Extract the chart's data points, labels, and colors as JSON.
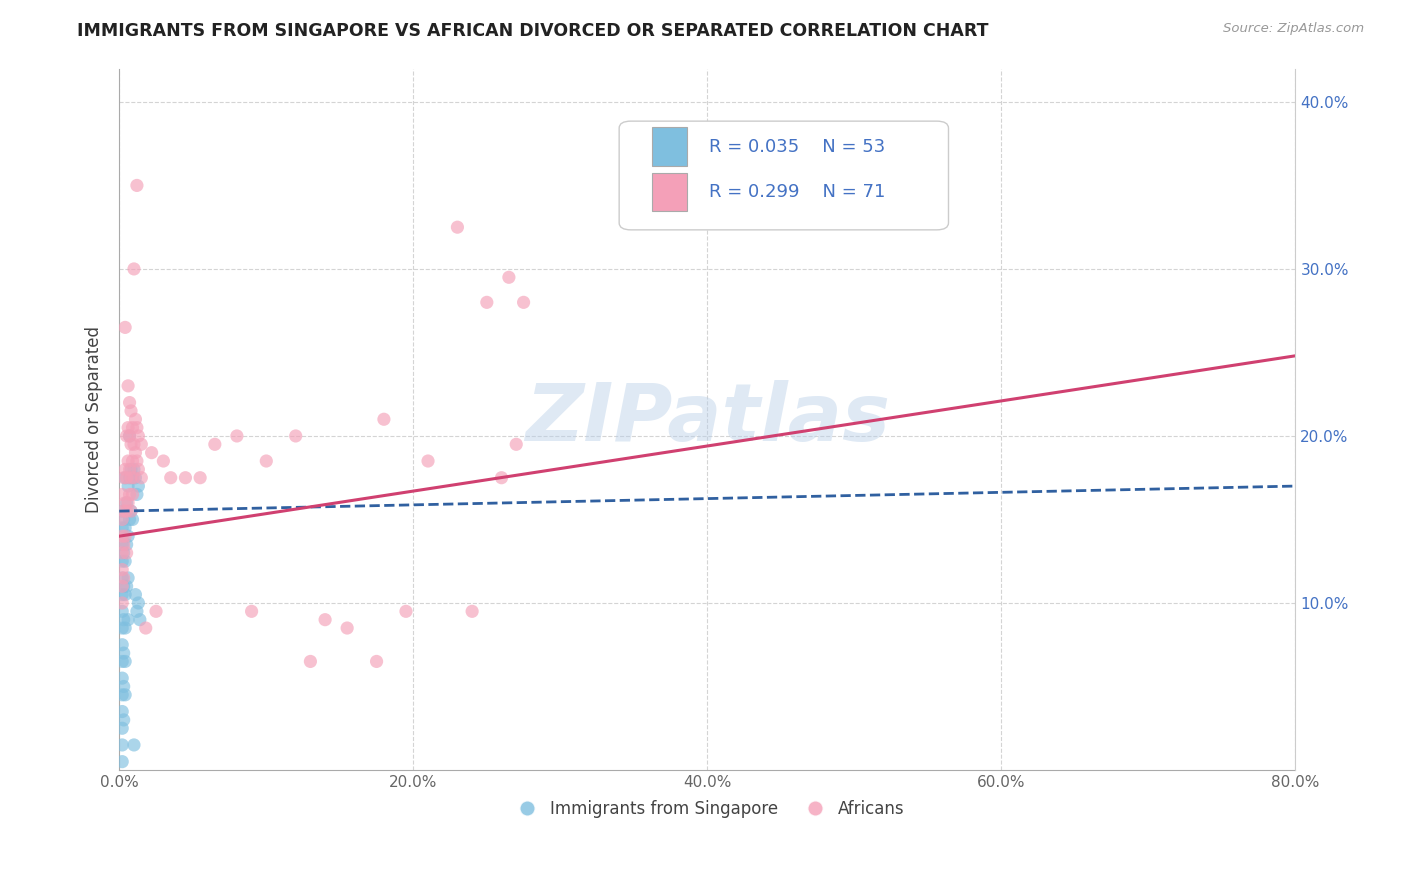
{
  "title": "IMMIGRANTS FROM SINGAPORE VS AFRICAN DIVORCED OR SEPARATED CORRELATION CHART",
  "source_text": "Source: ZipAtlas.com",
  "ylabel": "Divorced or Separated",
  "watermark": "ZIPatlas",
  "xlim": [
    0.0,
    0.8
  ],
  "ylim": [
    0.0,
    0.42
  ],
  "xtick_labels": [
    "0.0%",
    "20.0%",
    "40.0%",
    "60.0%",
    "80.0%"
  ],
  "xtick_vals": [
    0.0,
    0.2,
    0.4,
    0.6,
    0.8
  ],
  "ytick_labels": [
    "10.0%",
    "20.0%",
    "30.0%",
    "40.0%"
  ],
  "ytick_vals": [
    0.1,
    0.2,
    0.3,
    0.4
  ],
  "legend_color": "#4472c4",
  "blue_color": "#7fbfdf",
  "pink_color": "#f4a0b8",
  "blue_line_color": "#3060a0",
  "pink_line_color": "#d04070",
  "blue_line": [
    [
      0.0,
      0.155
    ],
    [
      0.8,
      0.17
    ]
  ],
  "pink_line": [
    [
      0.0,
      0.14
    ],
    [
      0.8,
      0.248
    ]
  ],
  "blue_scatter": [
    [
      0.002,
      0.155
    ],
    [
      0.002,
      0.145
    ],
    [
      0.002,
      0.135
    ],
    [
      0.002,
      0.125
    ],
    [
      0.002,
      0.115
    ],
    [
      0.002,
      0.105
    ],
    [
      0.002,
      0.095
    ],
    [
      0.002,
      0.085
    ],
    [
      0.002,
      0.075
    ],
    [
      0.002,
      0.065
    ],
    [
      0.002,
      0.055
    ],
    [
      0.002,
      0.045
    ],
    [
      0.002,
      0.035
    ],
    [
      0.002,
      0.025
    ],
    [
      0.002,
      0.015
    ],
    [
      0.002,
      0.005
    ],
    [
      0.003,
      0.15
    ],
    [
      0.003,
      0.13
    ],
    [
      0.003,
      0.11
    ],
    [
      0.003,
      0.09
    ],
    [
      0.003,
      0.07
    ],
    [
      0.003,
      0.05
    ],
    [
      0.003,
      0.03
    ],
    [
      0.004,
      0.175
    ],
    [
      0.004,
      0.145
    ],
    [
      0.004,
      0.125
    ],
    [
      0.004,
      0.105
    ],
    [
      0.004,
      0.085
    ],
    [
      0.004,
      0.065
    ],
    [
      0.004,
      0.045
    ],
    [
      0.005,
      0.16
    ],
    [
      0.005,
      0.135
    ],
    [
      0.005,
      0.11
    ],
    [
      0.006,
      0.17
    ],
    [
      0.006,
      0.14
    ],
    [
      0.006,
      0.115
    ],
    [
      0.006,
      0.09
    ],
    [
      0.007,
      0.2
    ],
    [
      0.007,
      0.175
    ],
    [
      0.007,
      0.15
    ],
    [
      0.008,
      0.18
    ],
    [
      0.008,
      0.155
    ],
    [
      0.009,
      0.175
    ],
    [
      0.009,
      0.15
    ],
    [
      0.01,
      0.18
    ],
    [
      0.011,
      0.175
    ],
    [
      0.012,
      0.165
    ],
    [
      0.013,
      0.17
    ],
    [
      0.01,
      0.015
    ],
    [
      0.011,
      0.105
    ],
    [
      0.012,
      0.095
    ],
    [
      0.013,
      0.1
    ],
    [
      0.014,
      0.09
    ]
  ],
  "pink_scatter": [
    [
      0.002,
      0.165
    ],
    [
      0.002,
      0.15
    ],
    [
      0.002,
      0.14
    ],
    [
      0.002,
      0.13
    ],
    [
      0.002,
      0.12
    ],
    [
      0.002,
      0.11
    ],
    [
      0.002,
      0.1
    ],
    [
      0.003,
      0.175
    ],
    [
      0.003,
      0.155
    ],
    [
      0.003,
      0.135
    ],
    [
      0.003,
      0.115
    ],
    [
      0.004,
      0.265
    ],
    [
      0.004,
      0.18
    ],
    [
      0.004,
      0.16
    ],
    [
      0.004,
      0.14
    ],
    [
      0.005,
      0.2
    ],
    [
      0.005,
      0.175
    ],
    [
      0.005,
      0.155
    ],
    [
      0.005,
      0.13
    ],
    [
      0.006,
      0.23
    ],
    [
      0.006,
      0.205
    ],
    [
      0.006,
      0.185
    ],
    [
      0.006,
      0.16
    ],
    [
      0.007,
      0.22
    ],
    [
      0.007,
      0.2
    ],
    [
      0.007,
      0.18
    ],
    [
      0.007,
      0.165
    ],
    [
      0.008,
      0.215
    ],
    [
      0.008,
      0.195
    ],
    [
      0.008,
      0.175
    ],
    [
      0.008,
      0.155
    ],
    [
      0.009,
      0.205
    ],
    [
      0.009,
      0.185
    ],
    [
      0.009,
      0.165
    ],
    [
      0.01,
      0.3
    ],
    [
      0.01,
      0.195
    ],
    [
      0.01,
      0.175
    ],
    [
      0.011,
      0.21
    ],
    [
      0.011,
      0.19
    ],
    [
      0.012,
      0.35
    ],
    [
      0.012,
      0.205
    ],
    [
      0.012,
      0.185
    ],
    [
      0.013,
      0.2
    ],
    [
      0.013,
      0.18
    ],
    [
      0.015,
      0.195
    ],
    [
      0.015,
      0.175
    ],
    [
      0.018,
      0.085
    ],
    [
      0.022,
      0.19
    ],
    [
      0.025,
      0.095
    ],
    [
      0.03,
      0.185
    ],
    [
      0.045,
      0.175
    ],
    [
      0.065,
      0.195
    ],
    [
      0.08,
      0.2
    ],
    [
      0.1,
      0.185
    ],
    [
      0.12,
      0.2
    ],
    [
      0.14,
      0.09
    ],
    [
      0.155,
      0.085
    ],
    [
      0.18,
      0.21
    ],
    [
      0.195,
      0.095
    ],
    [
      0.21,
      0.185
    ],
    [
      0.23,
      0.325
    ],
    [
      0.25,
      0.28
    ],
    [
      0.26,
      0.175
    ],
    [
      0.27,
      0.195
    ],
    [
      0.24,
      0.095
    ],
    [
      0.13,
      0.065
    ],
    [
      0.175,
      0.065
    ],
    [
      0.09,
      0.095
    ],
    [
      0.055,
      0.175
    ],
    [
      0.035,
      0.175
    ],
    [
      0.275,
      0.28
    ],
    [
      0.265,
      0.295
    ]
  ],
  "background_color": "#ffffff",
  "grid_color": "#d0d0d0"
}
